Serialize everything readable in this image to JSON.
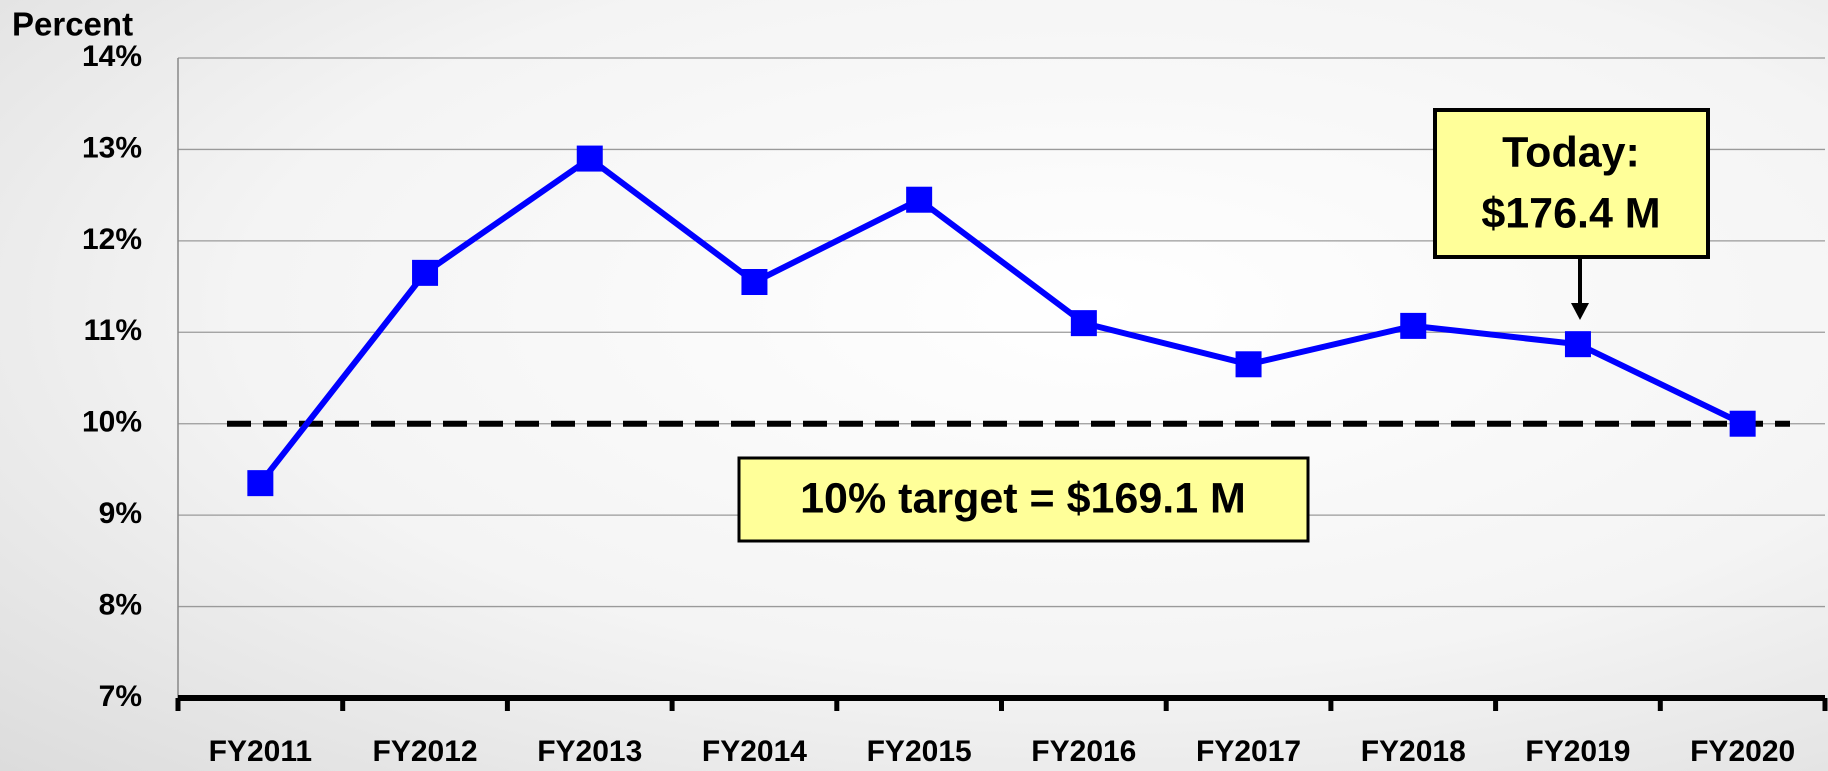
{
  "chart_data": {
    "type": "line",
    "y_axis_label": "Percent",
    "categories": [
      "FY2011",
      "FY2012",
      "FY2013",
      "FY2014",
      "FY2015",
      "FY2016",
      "FY2017",
      "FY2018",
      "FY2019",
      "FY2020"
    ],
    "series": [
      {
        "name": "Percent",
        "color": "#0000ff",
        "values": [
          9.35,
          11.65,
          12.9,
          11.55,
          12.45,
          11.1,
          10.65,
          11.07,
          10.87,
          10.0
        ]
      }
    ],
    "ylim": [
      7,
      14
    ],
    "yticks": [
      {
        "value": 7,
        "label": "7%"
      },
      {
        "value": 8,
        "label": "8%"
      },
      {
        "value": 9,
        "label": "9%"
      },
      {
        "value": 10,
        "label": "10%"
      },
      {
        "value": 11,
        "label": "11%"
      },
      {
        "value": 12,
        "label": "12%"
      },
      {
        "value": 13,
        "label": "13%"
      },
      {
        "value": 14,
        "label": "14%"
      }
    ],
    "grid": true,
    "reference_line": {
      "value": 10,
      "color": "#000000"
    },
    "annotations": [
      {
        "text": "10% target = $169.1 M",
        "color": "#000000"
      },
      {
        "lines": [
          "Today:",
          "$176.4 M"
        ],
        "color": "#0000ff"
      }
    ]
  }
}
